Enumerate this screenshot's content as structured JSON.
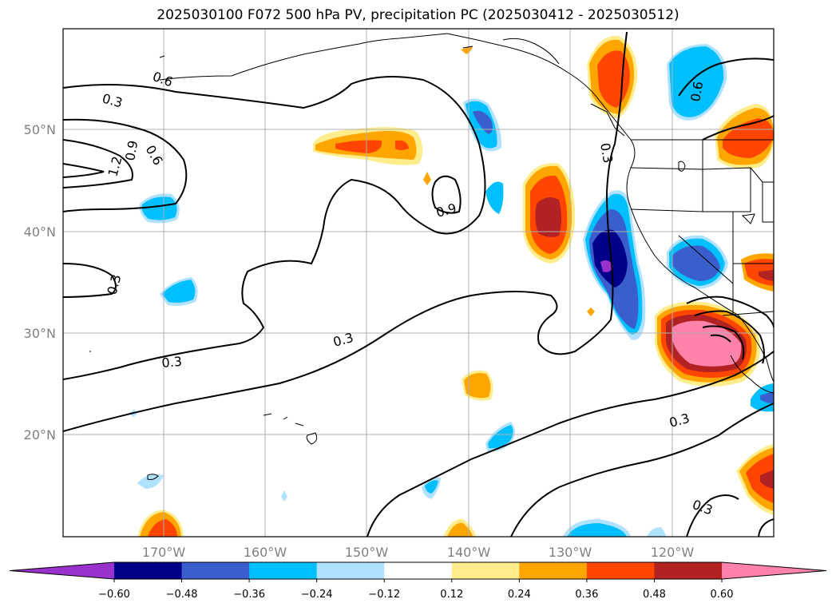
{
  "title": "2025030100 F072 500 hPa PV, precipitation PC (2025030412 - 2025030512)",
  "map": {
    "lon_ticks": [
      "170°W",
      "160°W",
      "150°W",
      "140°W",
      "130°W",
      "120°W"
    ],
    "lat_ticks": [
      "50°N",
      "40°N",
      "30°N",
      "20°N"
    ],
    "contour_labels": [
      "0.6",
      "0.3",
      "1.2",
      "0.9",
      "0.6",
      "0.9",
      "0.3",
      "0.3",
      "0.3",
      "0.3",
      "0.3",
      "0.6",
      "0.3"
    ]
  },
  "colorbar": {
    "ticks": [
      "−0.60",
      "−0.48",
      "−0.36",
      "−0.24",
      "−0.12",
      "0.12",
      "0.24",
      "0.36",
      "0.48",
      "0.60"
    ],
    "colors": [
      "#9932CC",
      "#00008B",
      "#3A5FCD",
      "#00BFFF",
      "#B0E2FF",
      "#FFFFFF",
      "#FFEC8B",
      "#FFA500",
      "#FF4500",
      "#B22222",
      "#FF82AB"
    ]
  }
}
